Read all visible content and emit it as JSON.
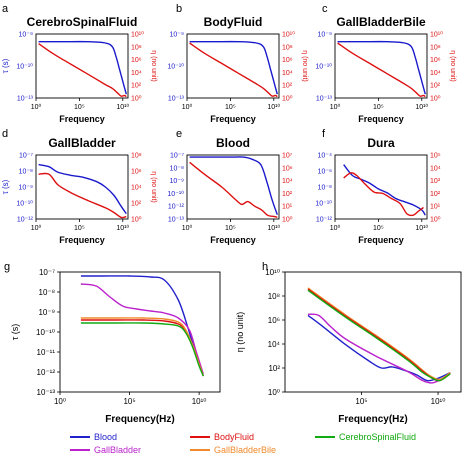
{
  "colors": {
    "Blood": "#2222cc",
    "BodyFluid": "#dd1111",
    "CerebroSpinalFluid": "#11aa11",
    "GallBladder": "#bb22cc",
    "GallBladderBile": "#f08a2a",
    "tau_axis": "#1a1acc",
    "eta_axis": "#dd1111"
  },
  "chart_data": [
    {
      "type": "line",
      "panel": "a",
      "title": "CerebroSpinalFluid",
      "xlabel": "Frequency",
      "ylabel_left": "τ (s)",
      "ylabel_right": "η (no unit)",
      "x_ticks": [
        "10⁰",
        "10⁵",
        "10¹⁰"
      ],
      "xlim_log": [
        0,
        10.6
      ],
      "left_ticks": [
        "10⁻¹³",
        "10⁻¹⁰",
        "10⁻⁹"
      ],
      "left_lim_log": [
        -13,
        -8
      ],
      "right_ticks": [
        "10⁰",
        "10²",
        "10⁴",
        "10⁶",
        "10⁸",
        "10¹⁰"
      ],
      "right_lim_log": [
        0,
        10
      ],
      "series": [
        {
          "axis": "left",
          "color": "tau_axis",
          "log_x": [
            0.3,
            3,
            6,
            8,
            8.8,
            9.2,
            9.6,
            10,
            10.4
          ],
          "log_y": [
            -8.6,
            -8.6,
            -8.6,
            -8.7,
            -9,
            -9.7,
            -10.7,
            -11.7,
            -12.7
          ]
        },
        {
          "axis": "right",
          "color": "eta_axis",
          "log_x": [
            0.3,
            2,
            4,
            6,
            8,
            8.8,
            9.3,
            9.8,
            10.2,
            10.4
          ],
          "log_y": [
            8.5,
            6.9,
            5.3,
            3.7,
            2.1,
            1.5,
            0.9,
            0.3,
            0.4,
            0.2
          ]
        }
      ]
    },
    {
      "type": "line",
      "panel": "b",
      "title": "BodyFluid",
      "xlabel": "Frequency",
      "ylabel_left": "",
      "ylabel_right": "η (no unit)",
      "x_ticks": [
        "10⁰",
        "10⁵",
        "10¹⁰"
      ],
      "xlim_log": [
        0,
        10.6
      ],
      "left_ticks": [
        "10⁻¹³",
        "10⁻¹⁰",
        "10⁻⁹"
      ],
      "left_lim_log": [
        -13,
        -8
      ],
      "right_ticks": [
        "10⁰",
        "10²",
        "10⁴",
        "10⁶",
        "10⁸",
        "10¹⁰"
      ],
      "right_lim_log": [
        0,
        10
      ],
      "series": [
        {
          "axis": "left",
          "color": "tau_axis",
          "log_x": [
            0.3,
            3,
            6,
            8,
            8.8,
            9.2,
            9.6,
            10,
            10.4
          ],
          "log_y": [
            -8.6,
            -8.6,
            -8.6,
            -8.7,
            -9,
            -9.7,
            -10.7,
            -11.7,
            -12.7
          ]
        },
        {
          "axis": "right",
          "color": "eta_axis",
          "log_x": [
            0.3,
            2,
            4,
            6,
            8,
            8.8,
            9.3,
            9.8,
            10.2,
            10.4
          ],
          "log_y": [
            8.6,
            7,
            5.4,
            3.8,
            2.2,
            1.5,
            0.9,
            0.3,
            0.4,
            0.2
          ]
        }
      ]
    },
    {
      "type": "line",
      "panel": "c",
      "title": "GallBladderBile",
      "xlabel": "Frequency",
      "ylabel_left": "",
      "ylabel_right": "η (no unit)",
      "x_ticks": [
        "10⁰",
        "10⁵",
        "10¹⁰"
      ],
      "xlim_log": [
        0,
        10.6
      ],
      "left_ticks": [
        "10⁻¹³",
        "10⁻¹⁰",
        "10⁻⁹"
      ],
      "left_lim_log": [
        -13,
        -8
      ],
      "right_ticks": [
        "10⁰",
        "10²",
        "10⁴",
        "10⁶",
        "10⁸",
        "10¹⁰"
      ],
      "right_lim_log": [
        0,
        10
      ],
      "series": [
        {
          "axis": "left",
          "color": "tau_axis",
          "log_x": [
            0.3,
            3,
            6,
            8,
            8.8,
            9.2,
            9.6,
            10,
            10.4
          ],
          "log_y": [
            -8.6,
            -8.6,
            -8.6,
            -8.7,
            -9,
            -9.7,
            -10.7,
            -11.7,
            -12.7
          ]
        },
        {
          "axis": "right",
          "color": "eta_axis",
          "log_x": [
            0.3,
            2,
            4,
            6,
            8,
            8.8,
            9.3,
            9.8,
            10.2,
            10.4
          ],
          "log_y": [
            8.6,
            7,
            5.4,
            3.8,
            2.2,
            1.5,
            0.9,
            0.3,
            0.4,
            0.2
          ]
        }
      ]
    },
    {
      "type": "line",
      "panel": "d",
      "title": "GallBladder",
      "xlabel": "Frequency",
      "ylabel_left": "τ (s)",
      "ylabel_right": "η (no unit)",
      "x_ticks": [
        "10⁰",
        "10⁵",
        "10¹⁰"
      ],
      "xlim_log": [
        0,
        10.6
      ],
      "left_ticks": [
        "10⁻¹²",
        "10⁻¹⁰",
        "10⁻⁹",
        "10⁻⁸",
        "10⁻⁷"
      ],
      "left_lim_log": [
        -13,
        -7
      ],
      "right_ticks": [
        "10⁰",
        "10²",
        "10⁴",
        "10⁶",
        "10⁸"
      ],
      "right_lim_log": [
        0,
        8
      ],
      "series": [
        {
          "axis": "left",
          "color": "tau_axis",
          "log_x": [
            0.3,
            1.5,
            2.5,
            4,
            5.5,
            7,
            8,
            9,
            9.8,
            10.4
          ],
          "log_y": [
            -7.9,
            -8.1,
            -8.6,
            -8.9,
            -9.1,
            -9.5,
            -10,
            -10.8,
            -11.8,
            -12.5
          ]
        },
        {
          "axis": "right",
          "color": "eta_axis",
          "log_x": [
            0.3,
            1.5,
            2.5,
            4,
            6,
            8,
            9,
            9.8,
            10.4
          ],
          "log_y": [
            5.6,
            5.6,
            4.3,
            3.3,
            2.3,
            1.4,
            0.8,
            0.2,
            0.3
          ]
        }
      ]
    },
    {
      "type": "line",
      "panel": "e",
      "title": "Blood",
      "xlabel": "Frequency",
      "ylabel_left": "",
      "ylabel_right": "",
      "x_ticks": [
        "10⁰",
        "10⁵",
        "10¹⁰"
      ],
      "xlim_log": [
        0,
        10.6
      ],
      "left_ticks": [
        "10⁻¹³",
        "10⁻¹²",
        "10⁻¹⁰",
        "10⁻⁹",
        "10⁻⁸",
        "10⁻⁷"
      ],
      "left_lim_log": [
        -13,
        -7
      ],
      "right_ticks": [
        "10⁰",
        "10¹",
        "10²",
        "10⁴",
        "10⁶",
        "10⁷"
      ],
      "right_lim_log": [
        0,
        7
      ],
      "series": [
        {
          "axis": "left",
          "color": "tau_axis",
          "log_x": [
            0.3,
            3,
            5,
            6.5,
            7.5,
            8.5,
            9.2,
            9.8,
            10.4
          ],
          "log_y": [
            -7.2,
            -7.2,
            -7.2,
            -7.2,
            -7.4,
            -7.9,
            -9.5,
            -11.2,
            -12.6
          ]
        },
        {
          "axis": "right",
          "color": "eta_axis",
          "log_x": [
            0.3,
            2,
            4,
            5.5,
            6.3,
            7,
            7.8,
            8.6,
            9.3,
            9.9,
            10.4
          ],
          "log_y": [
            6.2,
            4.9,
            3.5,
            2.2,
            1.6,
            1.9,
            1.4,
            1.0,
            0.4,
            0.3,
            0.2
          ]
        }
      ]
    },
    {
      "type": "line",
      "panel": "f",
      "title": "Dura",
      "xlabel": "Frequency",
      "ylabel_left": "",
      "ylabel_right": "",
      "x_ticks": [
        "10⁰",
        "10⁵",
        "10¹⁰"
      ],
      "xlim_log": [
        0,
        10.6
      ],
      "left_ticks": [
        "10⁻¹²",
        "10⁻¹⁰",
        "10⁻⁸",
        "10⁻⁶",
        "10⁻⁴"
      ],
      "left_lim_log": [
        -13,
        -3
      ],
      "right_ticks": [
        "10⁰",
        "10¹",
        "10²",
        "10³",
        "10⁴",
        "10⁵"
      ],
      "right_lim_log": [
        0,
        5
      ],
      "series": [
        {
          "axis": "left",
          "color": "tau_axis",
          "log_x": [
            1,
            2,
            3,
            4,
            5,
            6,
            7,
            8,
            9,
            10,
            10.4
          ],
          "log_y": [
            -4.5,
            -6.2,
            -6.8,
            -7.4,
            -8.3,
            -8.9,
            -9.8,
            -10.3,
            -10.8,
            -11.6,
            -12.4
          ]
        },
        {
          "axis": "right",
          "color": "eta_axis",
          "log_x": [
            1,
            1.8,
            2.5,
            3.5,
            4.5,
            5.5,
            6.5,
            7.5,
            8.3,
            9,
            9.6,
            10.2
          ],
          "log_y": [
            3.2,
            3.6,
            3.4,
            2.7,
            2.1,
            2.0,
            1.6,
            1.2,
            0.4,
            0.3,
            0.6,
            0.9
          ]
        }
      ]
    },
    {
      "type": "line",
      "panel": "g",
      "title": "",
      "xlabel": "Frequency(Hz)",
      "ylabel": "τ (s)",
      "x_ticks": [
        "10⁰",
        "10⁵",
        "10¹⁰"
      ],
      "xlim_log": [
        0,
        11.5
      ],
      "y_ticks": [
        "10⁻¹³",
        "10⁻¹²",
        "10⁻¹¹",
        "10⁻¹⁰",
        "10⁻⁹",
        "10⁻⁸",
        "10⁻⁷"
      ],
      "ylim_log": [
        -13,
        -7
      ],
      "series": [
        {
          "name": "Blood",
          "log_x": [
            1.5,
            3,
            5,
            6.5,
            7.5,
            8.5,
            9.2,
            9.8,
            10.3
          ],
          "log_y": [
            -7.2,
            -7.2,
            -7.2,
            -7.25,
            -7.4,
            -8.4,
            -9.8,
            -11.2,
            -12.2
          ]
        },
        {
          "name": "GallBladder",
          "log_x": [
            1.5,
            2.6,
            3.5,
            4.5,
            5.5,
            6.5,
            7.5,
            8.5,
            9.3,
            9.8,
            10.3
          ],
          "log_y": [
            -7.6,
            -7.7,
            -8.2,
            -8.7,
            -8.85,
            -8.95,
            -9.05,
            -9.3,
            -9.9,
            -11,
            -12.1
          ]
        },
        {
          "name": "BodyFluid",
          "log_x": [
            1.5,
            4,
            6,
            7.5,
            8.5,
            9,
            9.5,
            10,
            10.3
          ],
          "log_y": [
            -9.4,
            -9.4,
            -9.4,
            -9.45,
            -9.6,
            -9.9,
            -10.6,
            -11.6,
            -12.2
          ]
        },
        {
          "name": "GallBladderBile",
          "log_x": [
            1.5,
            4,
            6,
            7.5,
            8.5,
            9,
            9.5,
            10,
            10.3
          ],
          "log_y": [
            -9.3,
            -9.3,
            -9.3,
            -9.35,
            -9.5,
            -9.85,
            -10.6,
            -11.6,
            -12.2
          ]
        },
        {
          "name": "CerebroSpinalFluid",
          "log_x": [
            1.5,
            4,
            6,
            7.5,
            8.5,
            9,
            9.5,
            10,
            10.3
          ],
          "log_y": [
            -9.55,
            -9.55,
            -9.55,
            -9.6,
            -9.7,
            -10,
            -10.7,
            -11.7,
            -12.2
          ]
        }
      ]
    },
    {
      "type": "line",
      "panel": "h",
      "title": "",
      "xlabel": "Frequency(Hz)",
      "ylabel": "η (no unit)",
      "x_ticks": [
        "10⁵",
        "10¹⁰"
      ],
      "xlim_log": [
        0,
        11.5
      ],
      "y_ticks": [
        "10⁰",
        "10²",
        "10⁴",
        "10⁶",
        "10⁸",
        "10¹⁰"
      ],
      "ylim_log": [
        -0.5,
        10
      ],
      "series": [
        {
          "name": "Blood",
          "log_x": [
            1.5,
            2.5,
            4,
            5.5,
            6.3,
            7,
            7.8,
            8.6,
            9.3,
            10,
            10.8
          ],
          "log_y": [
            6.2,
            5.2,
            3.6,
            2.2,
            1.6,
            1.7,
            1.4,
            1.0,
            0.5,
            0.7,
            1.2
          ]
        },
        {
          "name": "GallBladder",
          "log_x": [
            1.5,
            2.2,
            3,
            4,
            6,
            8,
            9,
            9.6,
            10.2,
            10.8
          ],
          "log_y": [
            6.3,
            6.2,
            5.2,
            4.1,
            2.6,
            1.3,
            0.5,
            0.3,
            0.6,
            1.2
          ]
        },
        {
          "name": "GallBladderBile",
          "log_x": [
            1.5,
            4,
            6,
            8,
            9,
            9.5,
            10.1,
            10.8
          ],
          "log_y": [
            8.6,
            6.2,
            4.4,
            2.5,
            1.4,
            0.9,
            0.6,
            1.2
          ]
        },
        {
          "name": "BodyFluid",
          "log_x": [
            1.5,
            4,
            6,
            8,
            9,
            9.5,
            10.1,
            10.8
          ],
          "log_y": [
            8.5,
            6.1,
            4.3,
            2.4,
            1.3,
            0.8,
            0.5,
            1.1
          ]
        },
        {
          "name": "CerebroSpinalFluid",
          "log_x": [
            1.5,
            4,
            6,
            8,
            9,
            9.5,
            10.1,
            10.8
          ],
          "log_y": [
            8.4,
            6.0,
            4.2,
            2.3,
            1.2,
            0.8,
            0.5,
            1.1
          ]
        }
      ]
    }
  ],
  "panel_labels": [
    "a",
    "b",
    "c",
    "d",
    "e",
    "f",
    "g",
    "h"
  ],
  "legend": [
    {
      "name": "Blood",
      "label": "Blood"
    },
    {
      "name": "BodyFluid",
      "label": "BodyFluid"
    },
    {
      "name": "CerebroSpinalFluid",
      "label": "CerebroSpinalFluid"
    },
    {
      "name": "GallBladder",
      "label": "GallBladder"
    },
    {
      "name": "GallBladderBile",
      "label": "GallBladderBile"
    }
  ]
}
